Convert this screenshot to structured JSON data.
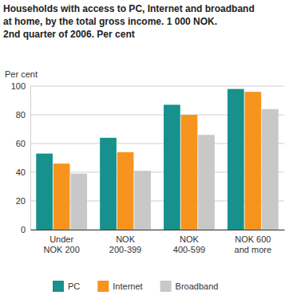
{
  "chart_data": {
    "type": "bar",
    "title": "Households with access to PC, Internet and broadband\nat home, by the total gross income. 1 000 NOK.\n2nd quarter of 2006. Per cent",
    "y_label": "Per cent",
    "categories": [
      "Under\nNOK 200",
      "NOK\n200-399",
      "NOK\n400-599",
      "NOK 600\nand more"
    ],
    "series": [
      {
        "name": "PC",
        "color": "#17918d",
        "values": [
          53,
          64,
          87,
          98
        ]
      },
      {
        "name": "Internet",
        "color": "#f7941d",
        "values": [
          46,
          54,
          80,
          96
        ]
      },
      {
        "name": "Broadband",
        "color": "#c8c8c8",
        "values": [
          39,
          41,
          66,
          84
        ]
      }
    ],
    "ylim": [
      0,
      100
    ],
    "yticks": [
      0,
      20,
      40,
      60,
      80,
      100
    ],
    "grid": true,
    "legend": "bottom"
  }
}
